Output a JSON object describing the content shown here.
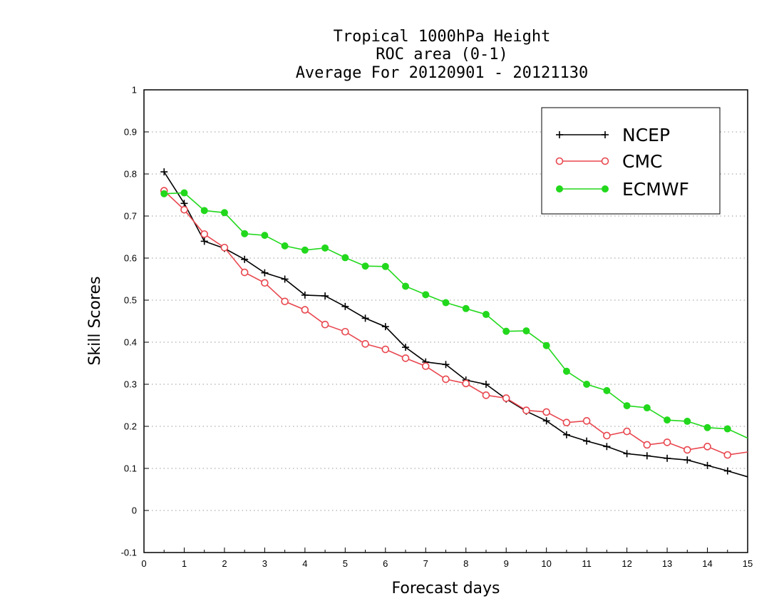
{
  "chart_data": {
    "type": "line",
    "title": [
      "Tropical 1000hPa Height",
      "ROC area (0-1)",
      "Average For 20120901 - 20121130"
    ],
    "xlabel": "Forecast days",
    "ylabel": "Skill Scores",
    "xlim": [
      0,
      15
    ],
    "ylim": [
      -0.1,
      1
    ],
    "xticks": [
      0,
      1,
      2,
      3,
      4,
      5,
      6,
      7,
      8,
      9,
      10,
      11,
      12,
      13,
      14,
      15
    ],
    "yticks": [
      -0.1,
      0,
      0.1,
      0.2,
      0.3,
      0.4,
      0.5,
      0.6,
      0.7,
      0.8,
      0.9,
      1
    ],
    "ytick_labels": [
      "-0.1",
      "0",
      "0.1",
      "0.2",
      "0.3",
      "0.4",
      "0.5",
      "0.6",
      "0.7",
      "0.8",
      "0.9",
      "1"
    ],
    "grid": "horizontal dotted",
    "legend_position": "top-right",
    "x": [
      0.5,
      1,
      1.5,
      2,
      2.5,
      3,
      3.5,
      4,
      4.5,
      5,
      5.5,
      6,
      6.5,
      7,
      7.5,
      8,
      8.5,
      9,
      9.5,
      10,
      10.5,
      11,
      11.5,
      12,
      12.5,
      13,
      13.5,
      14,
      14.5,
      15
    ],
    "series": [
      {
        "name": "NCEP",
        "color": "#000000",
        "marker": "plus",
        "values": [
          0.805,
          0.73,
          0.64,
          0.623,
          0.597,
          0.565,
          0.55,
          0.512,
          0.51,
          0.485,
          0.457,
          0.437,
          0.388,
          0.353,
          0.347,
          0.31,
          0.3,
          0.265,
          0.236,
          0.213,
          0.18,
          0.165,
          0.152,
          0.135,
          0.13,
          0.124,
          0.12,
          0.107,
          0.094,
          0.08
        ]
      },
      {
        "name": "CMC",
        "color": "#e8474f",
        "marker": "open-circle",
        "values": [
          0.76,
          0.715,
          0.657,
          0.625,
          0.566,
          0.541,
          0.497,
          0.477,
          0.442,
          0.425,
          0.396,
          0.383,
          0.362,
          0.343,
          0.312,
          0.302,
          0.274,
          0.267,
          0.238,
          0.234,
          0.209,
          0.213,
          0.178,
          0.188,
          0.156,
          0.162,
          0.144,
          0.152,
          0.132,
          0.139
        ]
      },
      {
        "name": "ECMWF",
        "color": "#22d81c",
        "marker": "filled-circle",
        "values": [
          0.753,
          0.755,
          0.713,
          0.708,
          0.658,
          0.654,
          0.629,
          0.619,
          0.624,
          0.601,
          0.581,
          0.58,
          0.533,
          0.513,
          0.494,
          0.48,
          0.466,
          0.426,
          0.427,
          0.392,
          0.331,
          0.3,
          0.285,
          0.249,
          0.244,
          0.215,
          0.212,
          0.197,
          0.194,
          0.172
        ]
      }
    ]
  }
}
